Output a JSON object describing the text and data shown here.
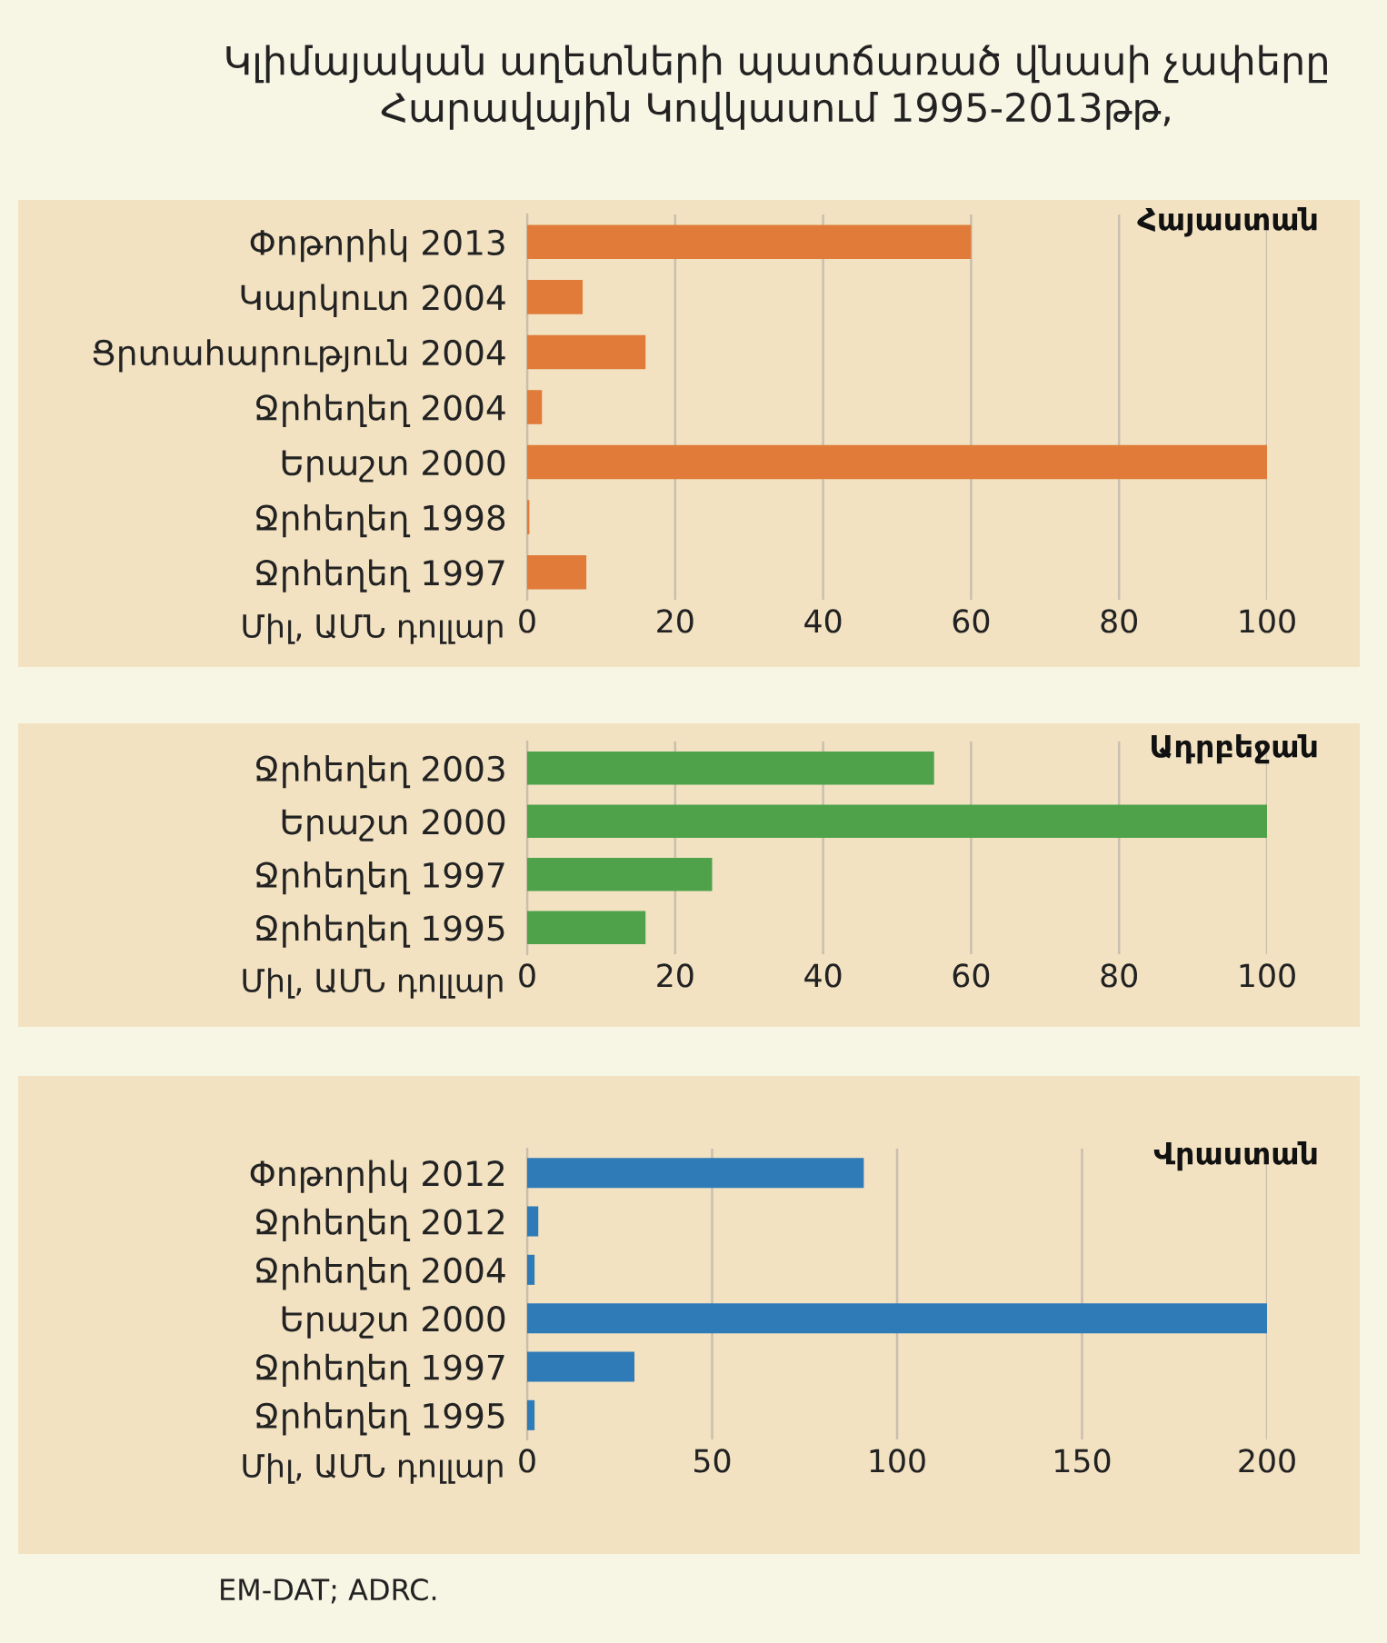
{
  "chart_data": [
    {
      "type": "bar",
      "orientation": "horizontal",
      "title": "Կլիմայական աղետների պատճառած վնասի չափերը\nՀարավային Կովկասում 1995-2013թթ,",
      "xlabel": "Միլ, ԱՄՆ դոլլար",
      "categories": [
        "Փոթորիկ 2013",
        "Կարկուտ 2004",
        "Ցրտահարություն 2004",
        "Ջրհեղեղ 2004",
        "Երաշտ 2000",
        "Ջրհեղեղ 1998",
        "Ջրհեղեղ 1997"
      ],
      "values": [
        60,
        7.5,
        16,
        2,
        100,
        0.3,
        8
      ],
      "color": "#e07b39",
      "xlim": [
        0,
        100
      ],
      "xticks": [
        0,
        20,
        40,
        60,
        80,
        100
      ],
      "grid": "x",
      "annotations": [
        "Հայաստան"
      ]
    },
    {
      "type": "bar",
      "orientation": "horizontal",
      "xlabel": "Միլ, ԱՄՆ դոլլար",
      "categories": [
        "Ջրհեղեղ 2003",
        "Երաշտ 2000",
        "Ջրհեղեղ 1997",
        "Ջրհեղեղ 1995"
      ],
      "values": [
        55,
        100,
        25,
        16
      ],
      "color": "#4fa24a",
      "xlim": [
        0,
        100
      ],
      "xticks": [
        0,
        20,
        40,
        60,
        80,
        100
      ],
      "grid": "x",
      "annotations": [
        "Ադրբեջան"
      ]
    },
    {
      "type": "bar",
      "orientation": "horizontal",
      "xlabel": "Միլ, ԱՄՆ դոլլար",
      "categories": [
        "Փոթորիկ 2012",
        "Ջրհեղեղ 2012",
        "Ջրհեղեղ 2004",
        "Երաշտ 2000",
        "Ջրհեղեղ 1997",
        "Ջրհեղեղ 1995"
      ],
      "values": [
        91,
        3,
        2,
        200,
        29,
        2
      ],
      "color": "#2f7bb8",
      "xlim": [
        0,
        200
      ],
      "xticks": [
        0,
        50,
        100,
        150,
        200
      ],
      "grid": "x",
      "annotations": [
        "Վրաստան",
        "EM-DAT; ADRC."
      ]
    }
  ]
}
